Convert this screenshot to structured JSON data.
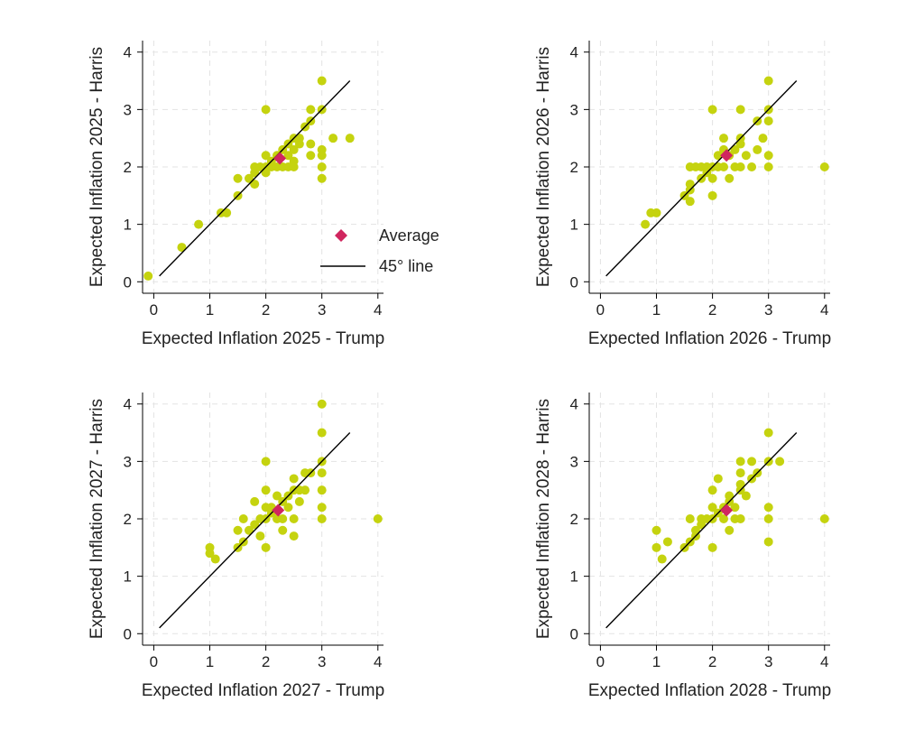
{
  "legend": {
    "average_label": "Average",
    "line_label": "45° line"
  },
  "colors": {
    "point": "#c5d30f",
    "average": "#d0265f",
    "line": "#000000",
    "grid": "#e3e3e3"
  },
  "chart_data": [
    {
      "type": "scatter",
      "xlabel": "Expected Inflation  2025 - Trump",
      "ylabel": "Expected Inflation 2025 - Harris",
      "xlim": [
        -0.2,
        4.1
      ],
      "ylim": [
        -0.2,
        4.2
      ],
      "xticks": [
        0,
        1,
        2,
        3,
        4
      ],
      "yticks": [
        0,
        1,
        2,
        3,
        4
      ],
      "grid": true,
      "legend": true,
      "average": [
        2.25,
        2.15
      ],
      "ref_line": [
        [
          0.1,
          0.1
        ],
        [
          3.5,
          3.5
        ]
      ],
      "points": [
        [
          -0.1,
          0.1
        ],
        [
          0.5,
          0.6
        ],
        [
          0.8,
          1.0
        ],
        [
          1.2,
          1.2
        ],
        [
          1.3,
          1.2
        ],
        [
          1.5,
          1.5
        ],
        [
          1.5,
          1.8
        ],
        [
          1.7,
          1.8
        ],
        [
          1.8,
          1.7
        ],
        [
          1.8,
          1.9
        ],
        [
          1.8,
          2.0
        ],
        [
          1.9,
          2.0
        ],
        [
          2.0,
          1.9
        ],
        [
          2.0,
          2.0
        ],
        [
          2.0,
          2.2
        ],
        [
          2.0,
          3.0
        ],
        [
          2.1,
          2.0
        ],
        [
          2.1,
          2.1
        ],
        [
          2.2,
          2.0
        ],
        [
          2.2,
          2.2
        ],
        [
          2.3,
          2.0
        ],
        [
          2.3,
          2.3
        ],
        [
          2.4,
          2.0
        ],
        [
          2.4,
          2.2
        ],
        [
          2.4,
          2.4
        ],
        [
          2.5,
          2.3
        ],
        [
          2.5,
          2.5
        ],
        [
          2.5,
          2.1
        ],
        [
          2.5,
          2.0
        ],
        [
          2.6,
          2.4
        ],
        [
          2.6,
          2.5
        ],
        [
          2.7,
          2.7
        ],
        [
          2.8,
          2.8
        ],
        [
          2.8,
          3.0
        ],
        [
          2.8,
          2.4
        ],
        [
          2.8,
          2.2
        ],
        [
          3.0,
          3.0
        ],
        [
          3.0,
          3.5
        ],
        [
          3.0,
          2.3
        ],
        [
          3.0,
          2.2
        ],
        [
          3.0,
          2.0
        ],
        [
          3.0,
          1.8
        ],
        [
          3.2,
          2.5
        ],
        [
          3.5,
          2.5
        ]
      ]
    },
    {
      "type": "scatter",
      "xlabel": "Expected Inflation  2026 - Trump",
      "ylabel": "Expected Inflation 2026 - Harris",
      "xlim": [
        -0.2,
        4.1
      ],
      "ylim": [
        -0.2,
        4.2
      ],
      "xticks": [
        0,
        1,
        2,
        3,
        4
      ],
      "yticks": [
        0,
        1,
        2,
        3,
        4
      ],
      "grid": true,
      "legend": false,
      "average": [
        2.25,
        2.2
      ],
      "ref_line": [
        [
          0.1,
          0.1
        ],
        [
          3.5,
          3.5
        ]
      ],
      "points": [
        [
          0.8,
          1.0
        ],
        [
          0.9,
          1.2
        ],
        [
          1.0,
          1.2
        ],
        [
          1.5,
          1.5
        ],
        [
          1.6,
          1.4
        ],
        [
          1.6,
          1.6
        ],
        [
          1.6,
          1.7
        ],
        [
          1.6,
          2.0
        ],
        [
          1.7,
          2.0
        ],
        [
          1.8,
          1.8
        ],
        [
          1.8,
          2.0
        ],
        [
          1.9,
          2.0
        ],
        [
          1.9,
          1.9
        ],
        [
          2.0,
          1.8
        ],
        [
          2.0,
          2.0
        ],
        [
          2.0,
          1.5
        ],
        [
          2.0,
          3.0
        ],
        [
          2.1,
          2.0
        ],
        [
          2.1,
          2.2
        ],
        [
          2.2,
          2.0
        ],
        [
          2.2,
          2.3
        ],
        [
          2.2,
          2.5
        ],
        [
          2.3,
          2.2
        ],
        [
          2.3,
          1.8
        ],
        [
          2.4,
          2.0
        ],
        [
          2.4,
          2.3
        ],
        [
          2.5,
          2.4
        ],
        [
          2.5,
          2.5
        ],
        [
          2.5,
          2.0
        ],
        [
          2.5,
          3.0
        ],
        [
          2.6,
          2.2
        ],
        [
          2.7,
          2.0
        ],
        [
          2.8,
          2.8
        ],
        [
          2.8,
          2.3
        ],
        [
          2.9,
          2.5
        ],
        [
          3.0,
          3.0
        ],
        [
          3.0,
          2.8
        ],
        [
          3.0,
          3.5
        ],
        [
          3.0,
          2.2
        ],
        [
          3.0,
          2.0
        ],
        [
          4.0,
          2.0
        ]
      ]
    },
    {
      "type": "scatter",
      "xlabel": "Expected Inflation 2027 - Trump",
      "ylabel": "Expected Inflation 2027 - Harris",
      "xlim": [
        -0.2,
        4.1
      ],
      "ylim": [
        -0.2,
        4.2
      ],
      "xticks": [
        0,
        1,
        2,
        3,
        4
      ],
      "yticks": [
        0,
        1,
        2,
        3,
        4
      ],
      "grid": true,
      "legend": false,
      "average": [
        2.22,
        2.15
      ],
      "ref_line": [
        [
          0.1,
          0.1
        ],
        [
          3.5,
          3.5
        ]
      ],
      "points": [
        [
          1.0,
          1.5
        ],
        [
          1.0,
          1.4
        ],
        [
          1.1,
          1.3
        ],
        [
          1.5,
          1.5
        ],
        [
          1.5,
          1.8
        ],
        [
          1.6,
          1.6
        ],
        [
          1.6,
          2.0
        ],
        [
          1.7,
          1.8
        ],
        [
          1.8,
          1.9
        ],
        [
          1.8,
          2.3
        ],
        [
          1.9,
          1.7
        ],
        [
          1.9,
          2.0
        ],
        [
          2.0,
          1.5
        ],
        [
          2.0,
          2.0
        ],
        [
          2.0,
          2.2
        ],
        [
          2.0,
          2.5
        ],
        [
          2.0,
          3.0
        ],
        [
          2.1,
          2.1
        ],
        [
          2.1,
          2.2
        ],
        [
          2.2,
          2.0
        ],
        [
          2.2,
          2.4
        ],
        [
          2.3,
          2.0
        ],
        [
          2.3,
          2.3
        ],
        [
          2.3,
          1.8
        ],
        [
          2.4,
          2.4
        ],
        [
          2.4,
          2.2
        ],
        [
          2.5,
          2.5
        ],
        [
          2.5,
          2.7
        ],
        [
          2.5,
          2.0
        ],
        [
          2.5,
          1.7
        ],
        [
          2.6,
          2.3
        ],
        [
          2.6,
          2.5
        ],
        [
          2.7,
          2.8
        ],
        [
          2.7,
          2.5
        ],
        [
          2.8,
          2.8
        ],
        [
          3.0,
          3.0
        ],
        [
          3.0,
          2.8
        ],
        [
          3.0,
          2.5
        ],
        [
          3.0,
          2.2
        ],
        [
          3.0,
          2.0
        ],
        [
          3.0,
          3.5
        ],
        [
          3.0,
          4.0
        ],
        [
          4.0,
          2.0
        ]
      ]
    },
    {
      "type": "scatter",
      "xlabel": "Expected Inflation  2028 - Trump",
      "ylabel": "Expected Inflation 2028 - Harris",
      "xlim": [
        -0.2,
        4.1
      ],
      "ylim": [
        -0.2,
        4.2
      ],
      "xticks": [
        0,
        1,
        2,
        3,
        4
      ],
      "yticks": [
        0,
        1,
        2,
        3,
        4
      ],
      "grid": true,
      "legend": false,
      "average": [
        2.25,
        2.15
      ],
      "ref_line": [
        [
          0.1,
          0.1
        ],
        [
          3.5,
          3.5
        ]
      ],
      "points": [
        [
          1.0,
          1.8
        ],
        [
          1.0,
          1.5
        ],
        [
          1.1,
          1.3
        ],
        [
          1.2,
          1.6
        ],
        [
          1.5,
          1.5
        ],
        [
          1.6,
          1.6
        ],
        [
          1.6,
          2.0
        ],
        [
          1.7,
          1.7
        ],
        [
          1.7,
          1.8
        ],
        [
          1.8,
          1.9
        ],
        [
          1.8,
          2.0
        ],
        [
          1.9,
          2.0
        ],
        [
          2.0,
          1.5
        ],
        [
          2.0,
          2.0
        ],
        [
          2.0,
          2.2
        ],
        [
          2.0,
          2.5
        ],
        [
          2.1,
          2.1
        ],
        [
          2.1,
          2.7
        ],
        [
          2.2,
          2.0
        ],
        [
          2.2,
          2.2
        ],
        [
          2.3,
          2.3
        ],
        [
          2.3,
          2.4
        ],
        [
          2.3,
          1.8
        ],
        [
          2.4,
          2.2
        ],
        [
          2.4,
          2.0
        ],
        [
          2.5,
          2.5
        ],
        [
          2.5,
          2.6
        ],
        [
          2.5,
          2.0
        ],
        [
          2.5,
          2.8
        ],
        [
          2.5,
          3.0
        ],
        [
          2.6,
          2.4
        ],
        [
          2.7,
          2.7
        ],
        [
          2.7,
          3.0
        ],
        [
          2.8,
          2.8
        ],
        [
          3.0,
          3.0
        ],
        [
          3.0,
          3.5
        ],
        [
          3.0,
          2.2
        ],
        [
          3.0,
          2.0
        ],
        [
          3.0,
          1.6
        ],
        [
          3.2,
          3.0
        ],
        [
          4.0,
          2.0
        ]
      ]
    }
  ]
}
